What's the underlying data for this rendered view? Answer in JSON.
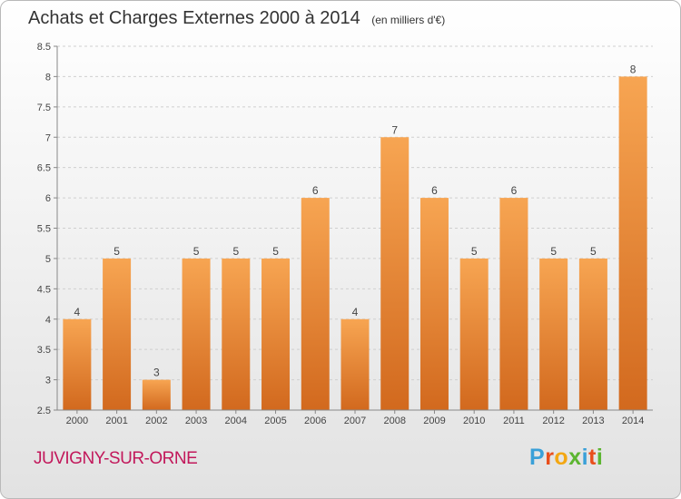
{
  "header": {
    "title": "Achats et Charges Externes 2000 à 2014",
    "unit_note": "(en milliers d'€)"
  },
  "footer": {
    "commune": "JUVIGNY-SUR-ORNE",
    "logo_letters": [
      "P",
      "r",
      "o",
      "x",
      "i",
      "t",
      "i"
    ],
    "logo_colors": [
      "#3aa0d8",
      "#e94e1b",
      "#f3a712",
      "#5cb531",
      "#3aa0d8",
      "#e94e1b",
      "#5cb531"
    ]
  },
  "chart_data": {
    "type": "bar",
    "categories": [
      "2000",
      "2001",
      "2002",
      "2003",
      "2004",
      "2005",
      "2006",
      "2007",
      "2008",
      "2009",
      "2010",
      "2011",
      "2012",
      "2013",
      "2014"
    ],
    "values": [
      4,
      5,
      3,
      5,
      5,
      5,
      6,
      4,
      7,
      6,
      5,
      6,
      5,
      5,
      8
    ],
    "data_labels": [
      "4",
      "5",
      "3",
      "5",
      "5",
      "5",
      "6",
      "4",
      "7",
      "6",
      "5",
      "6",
      "5",
      "5",
      "8"
    ],
    "ylim": [
      2.5,
      8.5
    ],
    "yticks": [
      "2.5",
      "3",
      "3.5",
      "4",
      "4.5",
      "5",
      "5.5",
      "6",
      "6.5",
      "7",
      "7.5",
      "8",
      "8.5"
    ],
    "grid": "horizontal-dashed",
    "colors": {
      "bar_top": "#f7a552",
      "bar_bottom": "#d2691e",
      "axis": "#888888",
      "text": "#444444"
    }
  }
}
